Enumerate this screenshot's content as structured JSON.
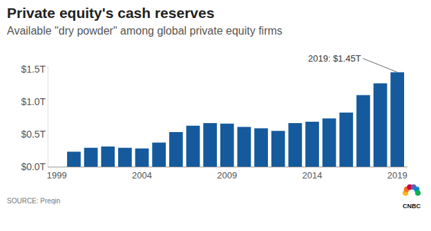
{
  "chart_data": {
    "type": "bar",
    "title": "Private equity's cash reserves",
    "subtitle": "Available \"dry powder\" among global private equity firms",
    "x": [
      2000,
      2001,
      2002,
      2003,
      2004,
      2005,
      2006,
      2007,
      2008,
      2009,
      2010,
      2011,
      2012,
      2013,
      2014,
      2015,
      2016,
      2017,
      2018,
      2019
    ],
    "values": [
      0.23,
      0.29,
      0.31,
      0.29,
      0.28,
      0.37,
      0.53,
      0.63,
      0.67,
      0.66,
      0.61,
      0.59,
      0.55,
      0.67,
      0.69,
      0.74,
      0.83,
      1.1,
      1.28,
      1.45
    ],
    "color": "#155a9c",
    "xlim": [
      1998.5,
      2019.6
    ],
    "xticks": [
      1999,
      2004,
      2009,
      2014,
      2019
    ],
    "ylim": [
      0,
      1.55
    ],
    "yticks": [
      {
        "value": 0,
        "label": "$0.0T"
      },
      {
        "value": 0.5,
        "label": "$0.5T"
      },
      {
        "value": 1.0,
        "label": "$1.0T"
      },
      {
        "value": 1.5,
        "label": "$1.5T"
      }
    ],
    "grid": false,
    "annotations": [
      {
        "x": 2019,
        "y": 1.45,
        "text": "2019: $1.45T"
      }
    ],
    "source": "SOURCE: Preqin",
    "logo": "CNBC"
  }
}
